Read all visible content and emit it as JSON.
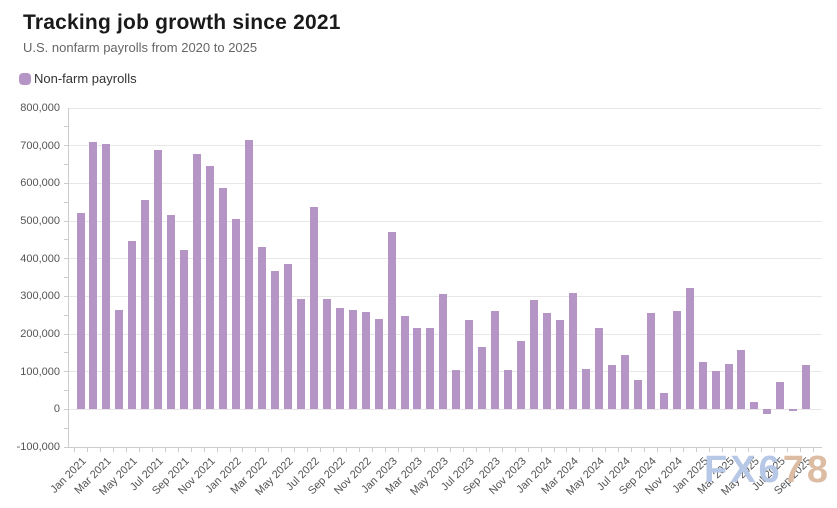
{
  "header": {
    "title": "Tracking job growth since 2021",
    "subtitle": "U.S. nonfarm payrolls from 2020 to 2025"
  },
  "legend": {
    "label": "Non-farm payrolls",
    "swatch_color": "#b594c6"
  },
  "watermark": {
    "part1": "FX6",
    "part2": "78",
    "color1": "#b7c7e6",
    "color2": "#ddbca4"
  },
  "colors": {
    "bar": "#b594c6",
    "gridline": "#e7e7e7",
    "axis": "#cccccc",
    "tick_label": "#545454"
  },
  "chart_data": {
    "type": "bar",
    "title": "Tracking job growth since 2021",
    "subtitle": "U.S. nonfarm payrolls from 2020 to 2025",
    "series_name": "Non-farm payrolls",
    "categories": [
      "Jan 2021",
      "Feb 2021",
      "Mar 2021",
      "Apr 2021",
      "May 2021",
      "Jun 2021",
      "Jul 2021",
      "Aug 2021",
      "Sep 2021",
      "Oct 2021",
      "Nov 2021",
      "Dec 2021",
      "Jan 2022",
      "Feb 2022",
      "Mar 2022",
      "Apr 2022",
      "May 2022",
      "Jun 2022",
      "Jul 2022",
      "Aug 2022",
      "Sep 2022",
      "Oct 2022",
      "Nov 2022",
      "Dec 2022",
      "Jan 2023",
      "Feb 2023",
      "Mar 2023",
      "Apr 2023",
      "May 2023",
      "Jun 2023",
      "Jul 2023",
      "Aug 2023",
      "Sep 2023",
      "Oct 2023",
      "Nov 2023",
      "Dec 2023",
      "Jan 2024",
      "Feb 2024",
      "Mar 2024",
      "Apr 2024",
      "May 2024",
      "Jun 2024",
      "Jul 2024",
      "Aug 2024",
      "Sep 2024",
      "Oct 2024",
      "Nov 2024",
      "Dec 2024",
      "Jan 2025",
      "Feb 2025",
      "Mar 2025",
      "Apr 2025",
      "May 2025",
      "Jun 2025",
      "Jul 2025",
      "Aug 2025",
      "Sep 2025"
    ],
    "values": [
      520000,
      710000,
      704000,
      263000,
      447000,
      557000,
      689000,
      517000,
      424000,
      677000,
      647000,
      588000,
      504000,
      714000,
      430000,
      368000,
      386000,
      293000,
      537000,
      292000,
      269000,
      263000,
      258000,
      239000,
      472000,
      248000,
      217000,
      217000,
      306000,
      105000,
      236000,
      165000,
      262000,
      105000,
      182000,
      290000,
      256000,
      236000,
      310000,
      108000,
      216000,
      118000,
      144000,
      78000,
      255000,
      44000,
      261000,
      323000,
      125000,
      102000,
      120000,
      158000,
      19000,
      -13000,
      73000,
      -4000,
      119000
    ],
    "ylim": [
      -100000,
      800000
    ],
    "ytick_step": 100000,
    "ytick_labels": [
      "800,000",
      "700,000",
      "600,000",
      "500,000",
      "400,000",
      "300,000",
      "200,000",
      "100,000",
      "0",
      "-100,000"
    ],
    "xtick_label_every": 2,
    "grid": "horizontal",
    "legend_position": "top-left"
  }
}
